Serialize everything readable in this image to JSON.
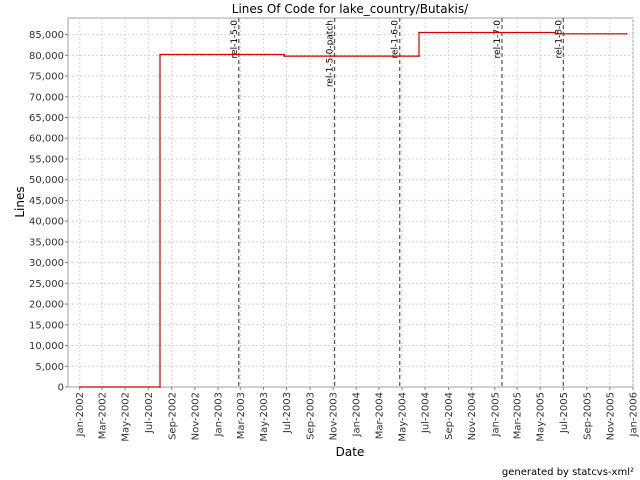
{
  "chart_data": {
    "type": "line",
    "title": "Lines Of Code for lake_country/Butakis/",
    "xlabel": "Date",
    "ylabel": "Lines",
    "ylim": [
      0,
      89000
    ],
    "xlim": [
      "2001-12-01",
      "2006-01-01"
    ],
    "yticks": [
      0,
      5000,
      10000,
      15000,
      20000,
      25000,
      30000,
      35000,
      40000,
      45000,
      50000,
      55000,
      60000,
      65000,
      70000,
      75000,
      80000,
      85000
    ],
    "ytick_labels": [
      "0",
      "5,000",
      "10,000",
      "15,000",
      "20,000",
      "25,000",
      "30,000",
      "35,000",
      "40,000",
      "45,000",
      "50,000",
      "55,000",
      "60,000",
      "65,000",
      "70,000",
      "75,000",
      "80,000",
      "85,000"
    ],
    "xticks": [
      "2002-01-01",
      "2002-03-01",
      "2002-05-01",
      "2002-07-01",
      "2002-09-01",
      "2002-11-01",
      "2003-01-01",
      "2003-03-01",
      "2003-05-01",
      "2003-07-01",
      "2003-09-01",
      "2003-11-01",
      "2004-01-01",
      "2004-03-01",
      "2004-05-01",
      "2004-07-01",
      "2004-09-01",
      "2004-11-01",
      "2005-01-01",
      "2005-03-01",
      "2005-05-01",
      "2005-07-01",
      "2005-09-01",
      "2005-11-01",
      "2006-01-01"
    ],
    "xtick_labels": [
      "Jan-2002",
      "Mar-2002",
      "May-2002",
      "Jul-2002",
      "Sep-2002",
      "Nov-2002",
      "Jan-2003",
      "Mar-2003",
      "May-2003",
      "Jul-2003",
      "Sep-2003",
      "Nov-2003",
      "Jan-2004",
      "Mar-2004",
      "May-2004",
      "Jul-2004",
      "Sep-2004",
      "Nov-2004",
      "Jan-2005",
      "Mar-2005",
      "May-2005",
      "Jul-2005",
      "Sep-2005",
      "Nov-2005",
      "Jan-2006"
    ],
    "grid": true,
    "series": [
      {
        "color": "#cc0000",
        "points": [
          {
            "x": "2002-01-01",
            "y": 0
          },
          {
            "x": "2002-08-01",
            "y": 0
          },
          {
            "x": "2002-08-01",
            "y": 80200
          },
          {
            "x": "2003-06-25",
            "y": 80200
          },
          {
            "x": "2003-06-25",
            "y": 79800
          },
          {
            "x": "2004-06-15",
            "y": 79800
          },
          {
            "x": "2004-06-15",
            "y": 85500
          },
          {
            "x": "2005-06-10",
            "y": 85500
          },
          {
            "x": "2005-06-10",
            "y": 85200
          },
          {
            "x": "2005-12-15",
            "y": 85200
          }
        ]
      }
    ],
    "markers": [
      {
        "label": "rel-1-5-0",
        "x": "2003-02-25"
      },
      {
        "label": "rel-1-5-0-patch",
        "x": "2003-11-05"
      },
      {
        "label": "rel-1-6-0",
        "x": "2004-04-25"
      },
      {
        "label": "rel-1-7-0",
        "x": "2005-01-20"
      },
      {
        "label": "rel-1-8-0",
        "x": "2005-07-01"
      }
    ]
  },
  "footer": {
    "credit": "generated by statcvs-xml²"
  },
  "colors": {
    "plot_bg": "#ffffff",
    "grid": "#d4d4d4",
    "axis": "#808080",
    "marker": "#555555",
    "series": "#cc0000"
  }
}
